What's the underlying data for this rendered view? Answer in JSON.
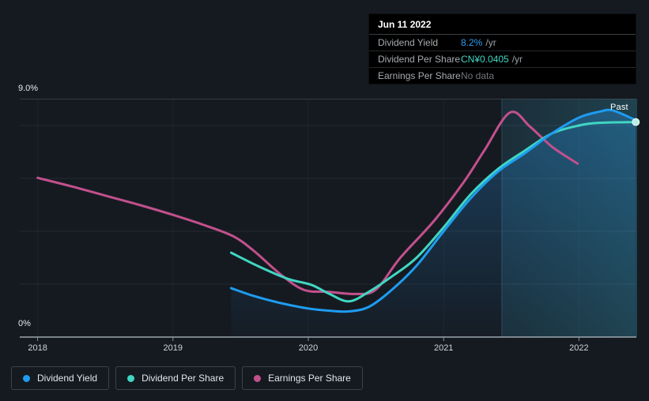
{
  "page": {
    "background": "#151a21"
  },
  "tooltip": {
    "date": "Jun 11 2022",
    "rows": [
      {
        "label": "Dividend Yield",
        "value": "8.2%",
        "suffix": "/yr",
        "value_color": "#2b9df4"
      },
      {
        "label": "Dividend Per Share",
        "value": "CN¥0.0405",
        "suffix": "/yr",
        "value_color": "#41d6c3"
      },
      {
        "label": "Earnings Per Share",
        "value": "No data",
        "suffix": "",
        "value_color": "#6e757c"
      }
    ]
  },
  "legend": [
    {
      "label": "Dividend Yield",
      "color": "#1e9cf0"
    },
    {
      "label": "Dividend Per Share",
      "color": "#41d6c3"
    },
    {
      "label": "Earnings Per Share",
      "color": "#c2508d"
    }
  ],
  "chart_data": {
    "type": "line",
    "title": "",
    "xlabel": "",
    "ylabel": "",
    "ylim": [
      0,
      9
    ],
    "xlim": [
      2017.87,
      2022.43
    ],
    "grid": true,
    "y_axis_labels": [
      {
        "value": 9,
        "label": "9.0%"
      },
      {
        "value": 0,
        "label": "0%"
      }
    ],
    "gridline_values": [
      2,
      4,
      6,
      8
    ],
    "top_line_value": 9,
    "x_ticks": [
      {
        "x": 2018,
        "label": "2018"
      },
      {
        "x": 2019,
        "label": "2019"
      },
      {
        "x": 2020,
        "label": "2020"
      },
      {
        "x": 2021,
        "label": "2021"
      },
      {
        "x": 2022,
        "label": "2022"
      }
    ],
    "past_region": {
      "label": "Past",
      "start": 2021.43,
      "end": 2022.43
    },
    "units_note": "values in percent of y-axis scale",
    "series": [
      {
        "name": "Earnings Per Share",
        "color": "#c2508d",
        "area_fill": false,
        "end_marker": false,
        "points": [
          [
            2018.0,
            6.02
          ],
          [
            2018.25,
            5.7
          ],
          [
            2018.5,
            5.35
          ],
          [
            2018.75,
            5.0
          ],
          [
            2019.0,
            4.62
          ],
          [
            2019.25,
            4.2
          ],
          [
            2019.45,
            3.8
          ],
          [
            2019.6,
            3.25
          ],
          [
            2019.8,
            2.35
          ],
          [
            2019.97,
            1.78
          ],
          [
            2020.15,
            1.71
          ],
          [
            2020.35,
            1.63
          ],
          [
            2020.5,
            1.8
          ],
          [
            2020.68,
            3.0
          ],
          [
            2020.93,
            4.4
          ],
          [
            2021.15,
            5.87
          ],
          [
            2021.3,
            7.05
          ],
          [
            2021.49,
            8.49
          ],
          [
            2021.64,
            7.95
          ],
          [
            2021.8,
            7.2
          ],
          [
            2021.99,
            6.56
          ]
        ]
      },
      {
        "name": "Dividend Per Share",
        "color": "#41d6c3",
        "area_fill": false,
        "end_marker": true,
        "points": [
          [
            2019.43,
            3.19
          ],
          [
            2019.63,
            2.68
          ],
          [
            2019.85,
            2.2
          ],
          [
            2020.02,
            1.98
          ],
          [
            2020.15,
            1.65
          ],
          [
            2020.3,
            1.35
          ],
          [
            2020.45,
            1.72
          ],
          [
            2020.62,
            2.3
          ],
          [
            2020.8,
            3.0
          ],
          [
            2021.0,
            4.15
          ],
          [
            2021.2,
            5.4
          ],
          [
            2021.4,
            6.35
          ],
          [
            2021.6,
            7.05
          ],
          [
            2021.8,
            7.7
          ],
          [
            2022.0,
            8.0
          ],
          [
            2022.15,
            8.1
          ],
          [
            2022.42,
            8.13
          ]
        ]
      },
      {
        "name": "Dividend Yield",
        "color": "#1e9cf0",
        "area_fill": true,
        "end_marker": false,
        "points": [
          [
            2019.43,
            1.85
          ],
          [
            2019.6,
            1.55
          ],
          [
            2019.8,
            1.28
          ],
          [
            2020.0,
            1.08
          ],
          [
            2020.15,
            1.0
          ],
          [
            2020.3,
            0.97
          ],
          [
            2020.45,
            1.15
          ],
          [
            2020.62,
            1.8
          ],
          [
            2020.8,
            2.7
          ],
          [
            2021.0,
            4.0
          ],
          [
            2021.2,
            5.25
          ],
          [
            2021.4,
            6.25
          ],
          [
            2021.6,
            6.95
          ],
          [
            2021.8,
            7.7
          ],
          [
            2022.0,
            8.3
          ],
          [
            2022.15,
            8.52
          ],
          [
            2022.25,
            8.57
          ],
          [
            2022.42,
            8.2
          ]
        ]
      }
    ]
  }
}
